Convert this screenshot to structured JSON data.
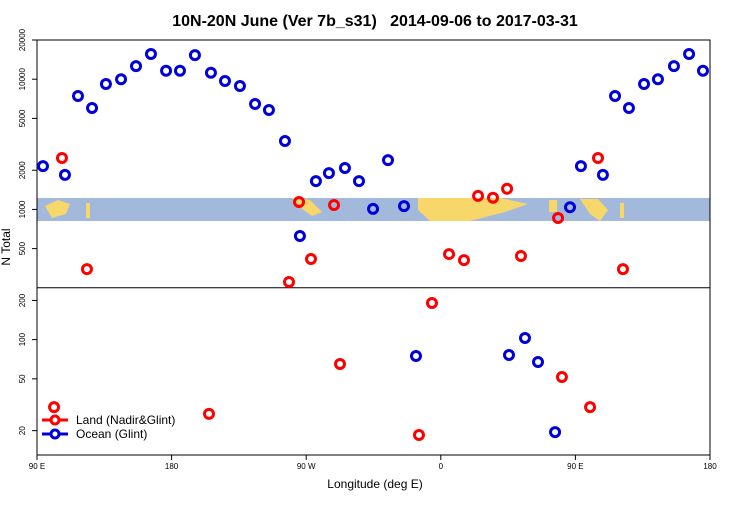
{
  "chart_data": {
    "type": "scatter",
    "title": "10N-20N June (Ver 7b_s31)   2014-09-06 to 2017-03-31",
    "xlabel": "Longitude (deg E)",
    "ylabel": "N Total",
    "ylog": true,
    "xlim": [
      90,
      540
    ],
    "ylim": [
      13,
      20000
    ],
    "xticks": [
      {
        "value": 90,
        "label": "90 E"
      },
      180,
      {
        "value": 270,
        "label": "90 W"
      },
      {
        "value": 360,
        "label": "0"
      },
      {
        "value": 450,
        "label": "90 E"
      },
      {
        "value": 540,
        "label": "180"
      }
    ],
    "yticks": [
      20,
      50,
      100,
      200,
      500,
      1000,
      2000,
      5000,
      10000,
      20000
    ],
    "hline": 250,
    "legend": "lower left",
    "series": [
      {
        "name": "Land (Nadir&Glint)",
        "color": "#ff0000",
        "x": [
          106.7,
          123.4,
          101.4,
          205,
          258.5,
          265.2,
          273.2,
          288.6,
          292.6,
          345.4,
          354.1,
          365.5,
          375.5,
          384.9,
          394.9,
          404.3,
          413.6,
          438.4,
          441,
          459.8,
          465.1,
          481.8
        ],
        "values": [
          2480,
          348,
          30.3,
          26.9,
          277,
          1140,
          416,
          1080,
          65,
          18.5,
          191,
          454,
          408,
          1270,
          1230,
          1440,
          439,
          859,
          51.6,
          30.3,
          2480,
          348
        ]
      },
      {
        "name": "Ocean (Glint)",
        "color": "#0000dd",
        "x": [
          94,
          108.7,
          117.4,
          126.8,
          136.1,
          146.2,
          156.2,
          166.2,
          176.3,
          185.6,
          195.6,
          206.3,
          215.7,
          225.7,
          235.8,
          245.1,
          255.8,
          265.8,
          276.5,
          285.2,
          295.9,
          305.3,
          314.7,
          324.7,
          335.4,
          343.4,
          405.6,
          416.3,
          425,
          436.4,
          446.4,
          453.7,
          468.4,
          476.5,
          485.8,
          495.9,
          505.2,
          515.9,
          526,
          535.3
        ],
        "values": [
          2150,
          1840,
          7430,
          6010,
          9180,
          10000,
          12600,
          15600,
          11600,
          11600,
          15300,
          11200,
          9680,
          8870,
          6450,
          5800,
          3350,
          625,
          1650,
          1900,
          2080,
          1650,
          1010,
          2390,
          1060,
          74.8,
          76.2,
          103,
          67.3,
          19.5,
          1040,
          2150,
          1840,
          7430,
          6010,
          9180,
          10000,
          12600,
          15600,
          11600
        ]
      }
    ]
  }
}
